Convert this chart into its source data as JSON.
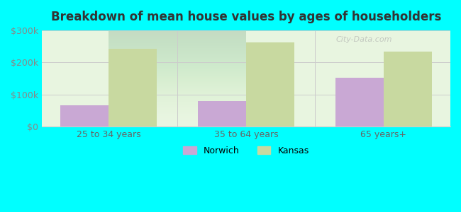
{
  "title": "Breakdown of mean house values by ages of householders",
  "categories": [
    "25 to 34 years",
    "35 to 64 years",
    "65 years+"
  ],
  "norwich_values": [
    68000,
    80000,
    152000
  ],
  "kansas_values": [
    243000,
    262000,
    233000
  ],
  "ylim": [
    0,
    300000
  ],
  "yticks": [
    0,
    100000,
    200000,
    300000
  ],
  "ytick_labels": [
    "$0",
    "$100k",
    "$200k",
    "$300k"
  ],
  "norwich_color": "#c9a8d4",
  "kansas_color": "#c8d9a0",
  "background_color": "#00ffff",
  "plot_bg_top": "#e8f5e0",
  "plot_bg_bottom": "#f5fff0",
  "title_color": "#333333",
  "legend_labels": [
    "Norwich",
    "Kansas"
  ],
  "bar_width": 0.35
}
